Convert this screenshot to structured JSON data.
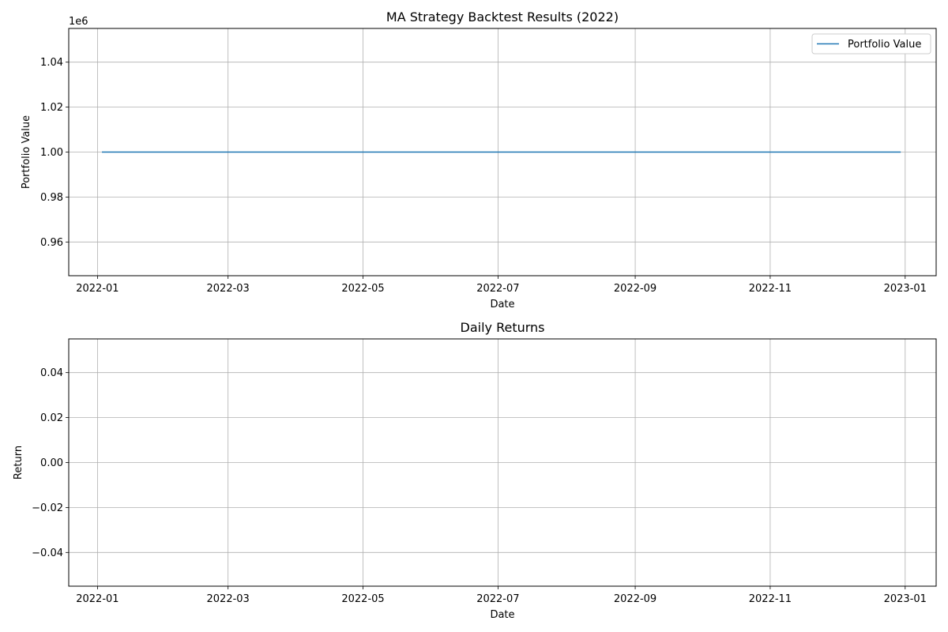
{
  "chart_data": [
    {
      "type": "line",
      "title": "MA Strategy Backtest Results (2022)",
      "xlabel": "Date",
      "ylabel": "Portfolio Value",
      "y_offset_label": "1e6",
      "xlim": [
        "2021-12-19",
        "2023-01-15"
      ],
      "ylim": [
        0.945,
        1.055
      ],
      "x_ticks": [
        "2022-01-01",
        "2022-03-01",
        "2022-05-01",
        "2022-07-01",
        "2022-09-01",
        "2022-11-01",
        "2023-01-01"
      ],
      "x_tick_labels": [
        "2022-01",
        "2022-03",
        "2022-05",
        "2022-07",
        "2022-09",
        "2022-11",
        "2023-01"
      ],
      "y_ticks": [
        0.96,
        0.98,
        1.0,
        1.02,
        1.04
      ],
      "y_tick_labels": [
        "0.96",
        "0.98",
        "1.00",
        "1.02",
        "1.04"
      ],
      "grid": true,
      "legend_position": "top-right",
      "series": [
        {
          "name": "Portfolio Value",
          "color": "#1f77b4",
          "x": [
            "2022-01-03",
            "2022-12-30"
          ],
          "values": [
            1.0,
            1.0
          ]
        }
      ]
    },
    {
      "type": "line",
      "title": "Daily Returns",
      "xlabel": "Date",
      "ylabel": "Return",
      "xlim": [
        "2021-12-19",
        "2023-01-15"
      ],
      "ylim": [
        -0.055,
        0.055
      ],
      "x_ticks": [
        "2022-01-01",
        "2022-03-01",
        "2022-05-01",
        "2022-07-01",
        "2022-09-01",
        "2022-11-01",
        "2023-01-01"
      ],
      "x_tick_labels": [
        "2022-01",
        "2022-03",
        "2022-05",
        "2022-07",
        "2022-09",
        "2022-11",
        "2023-01"
      ],
      "y_ticks": [
        -0.04,
        -0.02,
        0.0,
        0.02,
        0.04
      ],
      "y_tick_labels": [
        "−0.04",
        "−0.02",
        "0.00",
        "0.02",
        "0.04"
      ],
      "grid": true,
      "series": []
    }
  ]
}
